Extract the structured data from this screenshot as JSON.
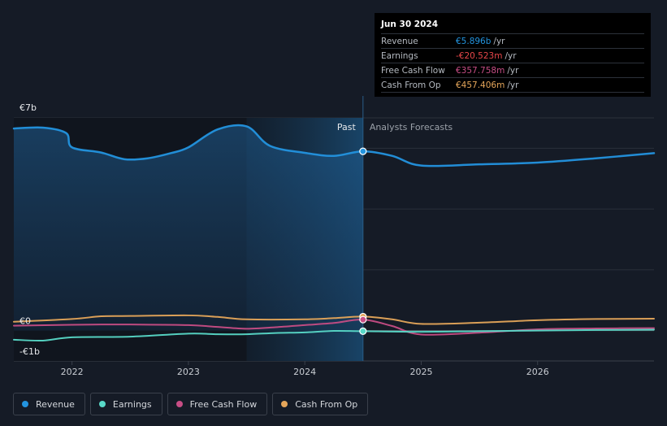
{
  "colors": {
    "background": "#151b26",
    "revenue": "#2394df",
    "earnings": "#58d9c8",
    "free_cash_flow": "#c74d85",
    "cash_from_op": "#e5a65a",
    "grid": "#2a303b"
  },
  "tooltip": {
    "date": "Jun 30 2024",
    "rows": [
      {
        "name": "Revenue",
        "value": "€5.896b",
        "unit": "/yr",
        "color": "#2394df"
      },
      {
        "name": "Earnings",
        "value": "-€20.523m",
        "unit": "/yr",
        "color": "#e8474a"
      },
      {
        "name": "Free Cash Flow",
        "value": "€357.758m",
        "unit": "/yr",
        "color": "#c74d85"
      },
      {
        "name": "Cash From Op",
        "value": "€457.406m",
        "unit": "/yr",
        "color": "#e5a65a"
      }
    ]
  },
  "legend": [
    {
      "label": "Revenue",
      "color": "#2394df",
      "icon": "revenue-dot-icon"
    },
    {
      "label": "Earnings",
      "color": "#58d9c8",
      "icon": "earnings-dot-icon"
    },
    {
      "label": "Free Cash Flow",
      "color": "#c74d85",
      "icon": "free-cash-flow-dot-icon"
    },
    {
      "label": "Cash From Op",
      "color": "#e5a65a",
      "icon": "cash-from-op-dot-icon"
    }
  ],
  "chart_data": {
    "type": "line",
    "title": "",
    "xlabel": "",
    "ylabel": "",
    "ylim": [
      -1,
      7
    ],
    "xlim": [
      2021.5,
      2027.0
    ],
    "y_tick_labels": [
      {
        "value": 7,
        "label": "€7b"
      },
      {
        "value": 0,
        "label": "€0"
      },
      {
        "value": -1,
        "label": "-€1b"
      }
    ],
    "gridlines": [
      7,
      6,
      4,
      2,
      0
    ],
    "x_ticks": [
      {
        "value": 2022,
        "label": "2022"
      },
      {
        "value": 2023,
        "label": "2023"
      },
      {
        "value": 2024,
        "label": "2024"
      },
      {
        "value": 2025,
        "label": "2025"
      },
      {
        "value": 2026,
        "label": "2026"
      }
    ],
    "past_label": "Past",
    "forecast_label": "Analysts Forecasts",
    "divider_x": 2024.5,
    "highlight_start_x": 2023.5,
    "highlight_point_x": 2024.5,
    "series": [
      {
        "name": "Revenue",
        "key": "revenue",
        "fill": true,
        "x": [
          2021.5,
          2021.75,
          2021.95,
          2022.0,
          2022.25,
          2022.45,
          2022.65,
          2022.85,
          2023.0,
          2023.25,
          2023.5,
          2023.7,
          2024.0,
          2024.25,
          2024.5,
          2024.75,
          2025.0,
          2025.5,
          2026.0,
          2026.5,
          2027.0
        ],
        "y": [
          6.65,
          6.68,
          6.5,
          6.03,
          5.86,
          5.64,
          5.67,
          5.84,
          6.03,
          6.62,
          6.72,
          6.08,
          5.85,
          5.75,
          5.9,
          5.75,
          5.43,
          5.47,
          5.53,
          5.67,
          5.84
        ]
      },
      {
        "name": "Cash From Op",
        "key": "cash_from_op",
        "fill": false,
        "x": [
          2021.5,
          2022.0,
          2022.25,
          2022.5,
          2023.0,
          2023.25,
          2023.5,
          2024.0,
          2024.25,
          2024.5,
          2024.75,
          2025.0,
          2025.5,
          2026.0,
          2026.5,
          2027.0
        ],
        "y": [
          0.29,
          0.38,
          0.47,
          0.48,
          0.5,
          0.45,
          0.37,
          0.37,
          0.41,
          0.46,
          0.37,
          0.22,
          0.26,
          0.34,
          0.38,
          0.39
        ]
      },
      {
        "name": "Free Cash Flow",
        "key": "free_cash_flow",
        "fill": false,
        "x": [
          2021.5,
          2022.0,
          2022.25,
          2022.5,
          2023.0,
          2023.25,
          2023.5,
          2023.75,
          2024.0,
          2024.25,
          2024.5,
          2024.75,
          2025.0,
          2025.5,
          2026.0,
          2026.5,
          2027.0
        ],
        "y": [
          0.16,
          0.19,
          0.2,
          0.2,
          0.18,
          0.12,
          0.06,
          0.11,
          0.18,
          0.25,
          0.36,
          0.15,
          -0.13,
          -0.07,
          0.04,
          0.07,
          0.08
        ]
      },
      {
        "name": "Earnings",
        "key": "earnings",
        "fill": false,
        "x": [
          2021.5,
          2021.75,
          2022.0,
          2022.5,
          2023.0,
          2023.25,
          2023.5,
          2023.75,
          2024.0,
          2024.25,
          2024.5,
          2025.0,
          2025.5,
          2026.0,
          2026.5,
          2027.0
        ],
        "y": [
          -0.3,
          -0.33,
          -0.22,
          -0.2,
          -0.1,
          -0.12,
          -0.12,
          -0.08,
          -0.06,
          -0.01,
          -0.02,
          -0.04,
          -0.02,
          0.0,
          0.02,
          0.03
        ]
      }
    ]
  }
}
